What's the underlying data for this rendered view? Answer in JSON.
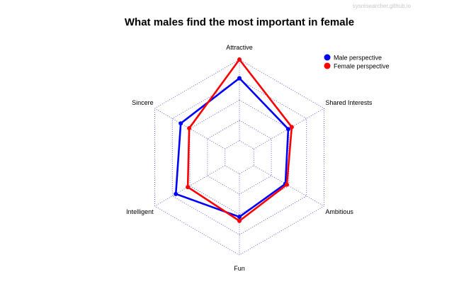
{
  "watermark": "sysresearcher.github.io",
  "chart_data": {
    "type": "radar",
    "title": "What males find the most important in female",
    "axes": [
      "Attractive",
      "Shared Interests",
      "Ambitious",
      "Fun",
      "Intelligent",
      "Sincere"
    ],
    "rlim": [
      0,
      1
    ],
    "grid_levels": 4,
    "grid": true,
    "legend_position": "top-right",
    "series": [
      {
        "name": "Male perspective",
        "color": "#0000ff",
        "values": [
          0.77,
          0.49,
          0.45,
          0.53,
          0.7,
          0.63
        ]
      },
      {
        "name": "Female perspective",
        "color": "#ff0000",
        "values": [
          1.0,
          0.54,
          0.47,
          0.58,
          0.53,
          0.51
        ]
      }
    ]
  }
}
